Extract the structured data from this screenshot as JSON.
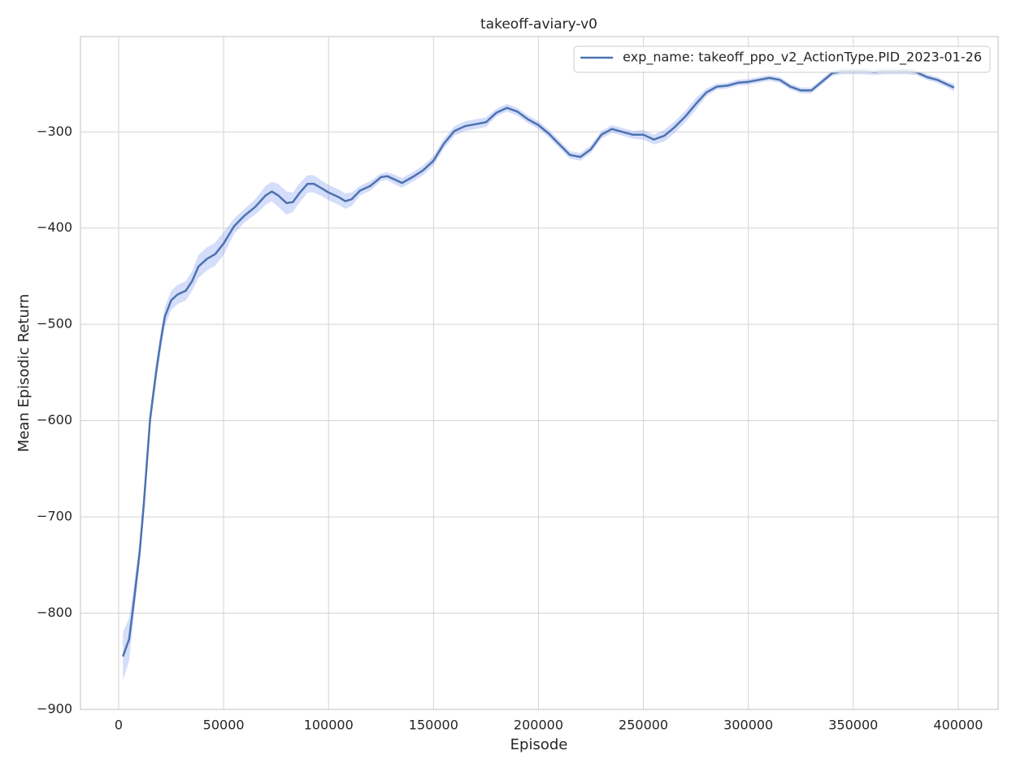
{
  "chart_data": {
    "type": "line",
    "title": "takeoff-aviary-v0",
    "x_label": "Episode",
    "y_label": "Mean Episodic Return",
    "xlim": [
      -18200,
      419000
    ],
    "ylim": [
      -900,
      -201
    ],
    "xticks": [
      0,
      50000,
      100000,
      150000,
      200000,
      250000,
      300000,
      350000,
      400000
    ],
    "yticks": [
      {
        "value": -900,
        "label": "−900"
      },
      {
        "value": -800,
        "label": "−800"
      },
      {
        "value": -700,
        "label": "−700"
      },
      {
        "value": -600,
        "label": "−600"
      },
      {
        "value": -500,
        "label": "−500"
      },
      {
        "value": -400,
        "label": "−400"
      },
      {
        "value": -300,
        "label": "−300"
      }
    ],
    "grid": true,
    "legend": "upper right",
    "x": [
      2000,
      5000,
      7000,
      10000,
      12000,
      15000,
      18000,
      20000,
      22000,
      25000,
      28000,
      32000,
      35000,
      38000,
      42000,
      46000,
      50000,
      55000,
      60000,
      65000,
      70000,
      73000,
      76000,
      80000,
      83000,
      86000,
      90000,
      93000,
      97000,
      100000,
      105000,
      108000,
      111000,
      115000,
      120000,
      125000,
      128000,
      131000,
      135000,
      140000,
      145000,
      150000,
      155000,
      160000,
      165000,
      170000,
      175000,
      180000,
      185000,
      190000,
      195000,
      200000,
      205000,
      210000,
      215000,
      220000,
      225000,
      230000,
      235000,
      240000,
      245000,
      250000,
      255000,
      260000,
      265000,
      270000,
      275000,
      280000,
      285000,
      290000,
      295000,
      300000,
      305000,
      310000,
      315000,
      320000,
      325000,
      330000,
      335000,
      340000,
      345000,
      350000,
      355000,
      360000,
      365000,
      370000,
      375000,
      380000,
      385000,
      390000,
      395000,
      398000
    ],
    "series": [
      {
        "name": "exp_name: takeoff_ppo_v2_ActionType.PID_2023-01-26",
        "color": "#4c72b0",
        "band_color": "#6f8ff0",
        "values": [
          -845,
          -827,
          -792,
          -737,
          -686,
          -598,
          -547,
          -518,
          -492,
          -475,
          -469,
          -465,
          -455,
          -440,
          -432,
          -427,
          -416,
          -398,
          -387,
          -378,
          -366,
          -362,
          -366,
          -374,
          -373,
          -364,
          -354,
          -354,
          -359,
          -363,
          -368,
          -372,
          -370,
          -361,
          -356,
          -347,
          -346,
          -349,
          -353,
          -347,
          -340,
          -330,
          -312,
          -299,
          -294,
          -292,
          -290,
          -280,
          -275,
          -279,
          -287,
          -293,
          -302,
          -313,
          -324,
          -326,
          -318,
          -303,
          -297,
          -300,
          -303,
          -303,
          -308,
          -304,
          -295,
          -284,
          -271,
          -259,
          -253,
          -252,
          -249,
          -248,
          -246,
          -244,
          -246,
          -253,
          -257,
          -257,
          -248,
          -239,
          -237,
          -237,
          -237,
          -238,
          -237,
          -237,
          -237,
          -238,
          -243,
          -246,
          -251,
          -254
        ],
        "lower": [
          -870,
          -849,
          -807,
          -749,
          -698,
          -608,
          -557,
          -528,
          -502,
          -485,
          -479,
          -475,
          -465,
          -452,
          -444,
          -439,
          -428,
          -406,
          -394,
          -386,
          -376,
          -372,
          -378,
          -386,
          -383,
          -374,
          -363,
          -363,
          -367,
          -371,
          -376,
          -380,
          -377,
          -366,
          -361,
          -351,
          -350,
          -354,
          -358,
          -352,
          -345,
          -335,
          -317,
          -304,
          -299,
          -297,
          -295,
          -284,
          -279,
          -283,
          -291,
          -297,
          -306,
          -317,
          -328,
          -330,
          -322,
          -307,
          -301,
          -304,
          -307,
          -308,
          -313,
          -310,
          -301,
          -290,
          -277,
          -263,
          -256,
          -255,
          -252,
          -251,
          -249,
          -247,
          -249,
          -256,
          -260,
          -260,
          -251,
          -242,
          -240,
          -240,
          -240,
          -241,
          -240,
          -240,
          -240,
          -241,
          -246,
          -249,
          -254,
          -258
        ],
        "upper": [
          -820,
          -805,
          -777,
          -725,
          -674,
          -588,
          -537,
          -508,
          -482,
          -465,
          -459,
          -455,
          -445,
          -428,
          -420,
          -415,
          -404,
          -390,
          -380,
          -370,
          -356,
          -352,
          -354,
          -362,
          -363,
          -354,
          -345,
          -345,
          -351,
          -355,
          -360,
          -364,
          -363,
          -356,
          -351,
          -343,
          -342,
          -344,
          -348,
          -342,
          -335,
          -325,
          -307,
          -294,
          -289,
          -287,
          -285,
          -276,
          -271,
          -275,
          -283,
          -289,
          -298,
          -309,
          -320,
          -322,
          -314,
          -299,
          -293,
          -296,
          -299,
          -298,
          -303,
          -298,
          -289,
          -278,
          -265,
          -255,
          -250,
          -249,
          -246,
          -245,
          -243,
          -241,
          -243,
          -250,
          -254,
          -254,
          -245,
          -236,
          -234,
          -234,
          -234,
          -235,
          -234,
          -234,
          -234,
          -235,
          -240,
          -243,
          -248,
          -250
        ]
      }
    ]
  }
}
